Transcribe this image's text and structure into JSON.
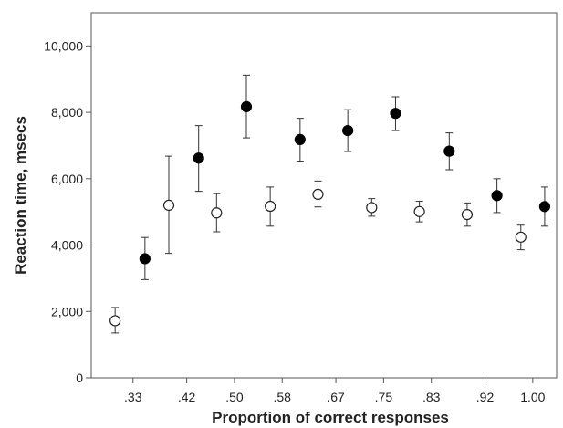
{
  "chart_data": {
    "type": "scatter",
    "title": "",
    "xlabel": "Proportion of correct responses",
    "ylabel": "Reaction time, msecs",
    "x_ticks": [
      ".33",
      ".42",
      ".50",
      ".58",
      ".67",
      ".75",
      ".83",
      ".92",
      "1.00"
    ],
    "y_ticks": [
      "0",
      "2,000",
      "4,000",
      "6,000",
      "8,000",
      "10,000"
    ],
    "ylim": [
      0,
      11000
    ],
    "xlim": [
      0.26,
      1.04
    ],
    "grid": false,
    "legend": "none",
    "error_bars": true,
    "series": [
      {
        "marker": "open-circle",
        "color": "#222222",
        "points": [
          {
            "x": 0.3,
            "y": 1720,
            "lo": 1350,
            "hi": 2120
          },
          {
            "x": 0.39,
            "y": 5200,
            "lo": 3750,
            "hi": 6680
          },
          {
            "x": 0.47,
            "y": 4970,
            "lo": 4400,
            "hi": 5550
          },
          {
            "x": 0.56,
            "y": 5170,
            "lo": 4570,
            "hi": 5750
          },
          {
            "x": 0.64,
            "y": 5530,
            "lo": 5150,
            "hi": 5930
          },
          {
            "x": 0.73,
            "y": 5130,
            "lo": 4870,
            "hi": 5400
          },
          {
            "x": 0.81,
            "y": 5010,
            "lo": 4700,
            "hi": 5320
          },
          {
            "x": 0.89,
            "y": 4920,
            "lo": 4570,
            "hi": 5270
          },
          {
            "x": 0.98,
            "y": 4240,
            "lo": 3860,
            "hi": 4600
          }
        ]
      },
      {
        "marker": "filled-circle",
        "color": "#000000",
        "points": [
          {
            "x": 0.35,
            "y": 3590,
            "lo": 2960,
            "hi": 4230
          },
          {
            "x": 0.44,
            "y": 6620,
            "lo": 5620,
            "hi": 7600
          },
          {
            "x": 0.52,
            "y": 8170,
            "lo": 7230,
            "hi": 9120
          },
          {
            "x": 0.61,
            "y": 7180,
            "lo": 6530,
            "hi": 7820
          },
          {
            "x": 0.69,
            "y": 7450,
            "lo": 6820,
            "hi": 8080
          },
          {
            "x": 0.77,
            "y": 7970,
            "lo": 7450,
            "hi": 8470
          },
          {
            "x": 0.86,
            "y": 6830,
            "lo": 6270,
            "hi": 7380
          },
          {
            "x": 0.94,
            "y": 5490,
            "lo": 4980,
            "hi": 6000
          },
          {
            "x": 1.02,
            "y": 5160,
            "lo": 4570,
            "hi": 5750
          }
        ]
      }
    ],
    "x_tick_values": [
      0.33,
      0.42,
      0.5,
      0.58,
      0.67,
      0.75,
      0.83,
      0.92,
      1.0
    ]
  }
}
